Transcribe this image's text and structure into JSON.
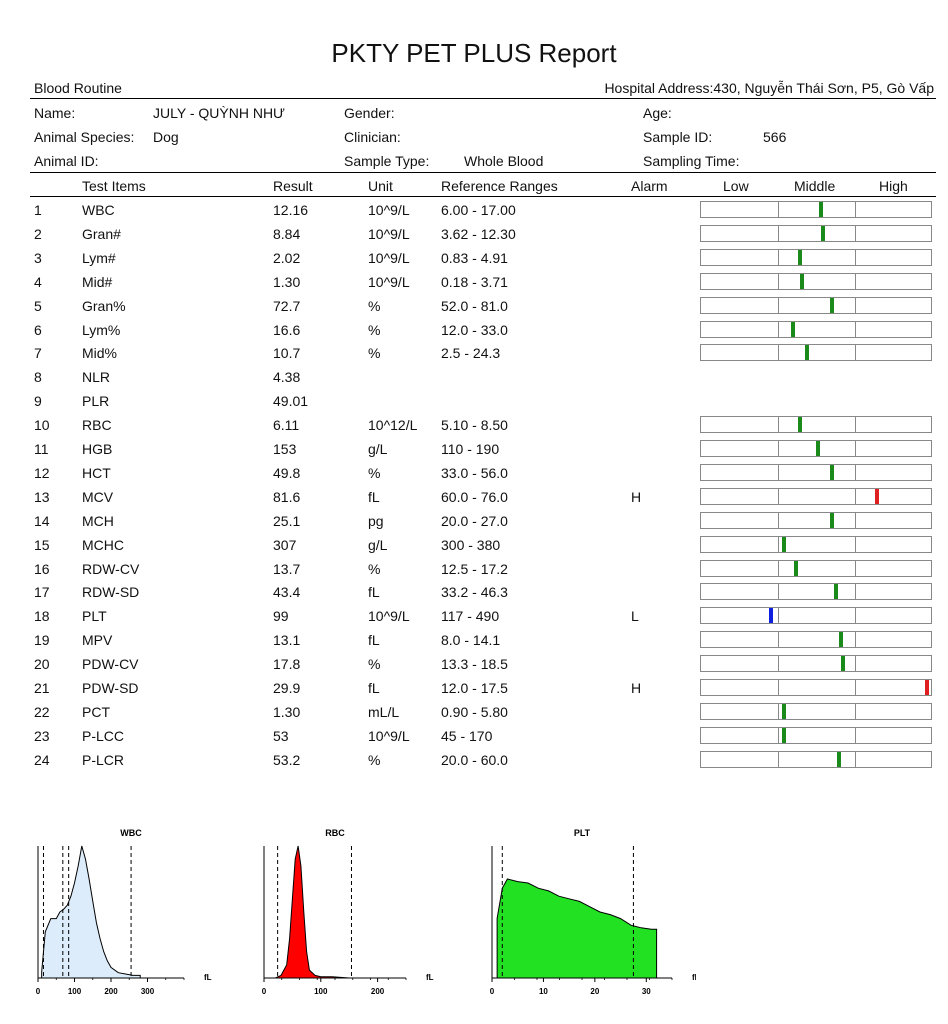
{
  "report": {
    "title": "PKTY PET PLUS Report",
    "section": "Blood Routine",
    "hospital_address": "Hospital Address:430, Nguyễn Thái Sơn, P5, Gò Vấp"
  },
  "patient": {
    "name_label": "Name:",
    "name_value": "JULY - QUỲNH NHƯ",
    "gender_label": "Gender:",
    "age_label": "Age:",
    "species_label": "Animal Species:",
    "species_value": "Dog",
    "clinician_label": "Clinician:",
    "sample_id_label": "Sample ID:",
    "sample_id_value": "566",
    "animal_id_label": "Animal ID:",
    "sample_type_label": "Sample Type:",
    "sample_type_value": "Whole Blood",
    "sampling_time_label": "Sampling Time:"
  },
  "table": {
    "headers": {
      "test_items": "Test Items",
      "result": "Result",
      "unit": "Unit",
      "reference": "Reference Ranges",
      "alarm": "Alarm",
      "low": "Low",
      "middle": "Middle",
      "high": "High"
    },
    "rows": [
      {
        "no": "1",
        "name": "WBC",
        "result": "12.16",
        "unit": "10^9/L",
        "ref": "6.00 - 17.00",
        "alarm": "",
        "level": 0.52,
        "flag": "normal"
      },
      {
        "no": "2",
        "name": "Gran#",
        "result": "8.84",
        "unit": "10^9/L",
        "ref": "3.62 - 12.30",
        "alarm": "",
        "level": 0.53,
        "flag": "normal"
      },
      {
        "no": "3",
        "name": "Lym#",
        "result": "2.02",
        "unit": "10^9/L",
        "ref": "0.83 - 4.91",
        "alarm": "",
        "level": 0.43,
        "flag": "normal"
      },
      {
        "no": "4",
        "name": "Mid#",
        "result": "1.30",
        "unit": "10^9/L",
        "ref": "0.18 - 3.71",
        "alarm": "",
        "level": 0.44,
        "flag": "normal"
      },
      {
        "no": "5",
        "name": "Gran%",
        "result": "72.7",
        "unit": "%",
        "ref": "52.0 - 81.0",
        "alarm": "",
        "level": 0.57,
        "flag": "normal"
      },
      {
        "no": "6",
        "name": "Lym%",
        "result": "16.6",
        "unit": "%",
        "ref": "12.0 - 33.0",
        "alarm": "",
        "level": 0.4,
        "flag": "normal"
      },
      {
        "no": "7",
        "name": "Mid%",
        "result": "10.7",
        "unit": "%",
        "ref": "2.5 - 24.3",
        "alarm": "",
        "level": 0.46,
        "flag": "normal"
      },
      {
        "no": "8",
        "name": "NLR",
        "result": "4.38",
        "unit": "",
        "ref": "",
        "alarm": "",
        "level": null,
        "flag": "none"
      },
      {
        "no": "9",
        "name": "PLR",
        "result": "49.01",
        "unit": "",
        "ref": "",
        "alarm": "",
        "level": null,
        "flag": "none"
      },
      {
        "no": "10",
        "name": "RBC",
        "result": "6.11",
        "unit": "10^12/L",
        "ref": "5.10 - 8.50",
        "alarm": "",
        "level": 0.43,
        "flag": "normal"
      },
      {
        "no": "11",
        "name": "HGB",
        "result": "153",
        "unit": "g/L",
        "ref": "110 - 190",
        "alarm": "",
        "level": 0.51,
        "flag": "normal"
      },
      {
        "no": "12",
        "name": "HCT",
        "result": "49.8",
        "unit": "%",
        "ref": "33.0 - 56.0",
        "alarm": "",
        "level": 0.57,
        "flag": "normal"
      },
      {
        "no": "13",
        "name": "MCV",
        "result": "81.6",
        "unit": "fL",
        "ref": "60.0 - 76.0",
        "alarm": "H",
        "level": 0.77,
        "flag": "high"
      },
      {
        "no": "14",
        "name": "MCH",
        "result": "25.1",
        "unit": "pg",
        "ref": "20.0 - 27.0",
        "alarm": "",
        "level": 0.57,
        "flag": "normal"
      },
      {
        "no": "15",
        "name": "MCHC",
        "result": "307",
        "unit": "g/L",
        "ref": "300 - 380",
        "alarm": "",
        "level": 0.36,
        "flag": "normal"
      },
      {
        "no": "16",
        "name": "RDW-CV",
        "result": "13.7",
        "unit": "%",
        "ref": "12.5 - 17.2",
        "alarm": "",
        "level": 0.41,
        "flag": "normal"
      },
      {
        "no": "17",
        "name": "RDW-SD",
        "result": "43.4",
        "unit": "fL",
        "ref": "33.2 - 46.3",
        "alarm": "",
        "level": 0.59,
        "flag": "normal"
      },
      {
        "no": "18",
        "name": "PLT",
        "result": "99",
        "unit": "10^9/L",
        "ref": "117 - 490",
        "alarm": "L",
        "level": 0.3,
        "flag": "low"
      },
      {
        "no": "19",
        "name": "MPV",
        "result": "13.1",
        "unit": "fL",
        "ref": "8.0 - 14.1",
        "alarm": "",
        "level": 0.61,
        "flag": "normal"
      },
      {
        "no": "20",
        "name": "PDW-CV",
        "result": "17.8",
        "unit": "%",
        "ref": "13.3 - 18.5",
        "alarm": "",
        "level": 0.62,
        "flag": "normal"
      },
      {
        "no": "21",
        "name": "PDW-SD",
        "result": "29.9",
        "unit": "fL",
        "ref": "12.0 - 17.5",
        "alarm": "H",
        "level": 0.99,
        "flag": "high"
      },
      {
        "no": "22",
        "name": "PCT",
        "result": "1.30",
        "unit": "mL/L",
        "ref": "0.90 - 5.80",
        "alarm": "",
        "level": 0.36,
        "flag": "normal"
      },
      {
        "no": "23",
        "name": "P-LCC",
        "result": "53",
        "unit": "10^9/L",
        "ref": "45 - 170",
        "alarm": "",
        "level": 0.36,
        "flag": "normal"
      },
      {
        "no": "24",
        "name": "P-LCR",
        "result": "53.2",
        "unit": "%",
        "ref": "20.0 - 60.0",
        "alarm": "",
        "level": 0.6,
        "flag": "normal"
      }
    ]
  },
  "colors": {
    "normal": "#1a8a1a",
    "high": "#e02020",
    "low": "#1020e0",
    "wbc_fill": "#dcecfa",
    "rbc_fill": "#ff0000",
    "plt_fill": "#22e022"
  },
  "chart_data": [
    {
      "type": "area",
      "title": "WBC",
      "xlabel": "fL",
      "xlim": [
        0,
        400
      ],
      "xticks": [
        "0",
        "100",
        "200",
        "300"
      ],
      "x": [
        10,
        20,
        35,
        50,
        60,
        70,
        80,
        90,
        100,
        110,
        120,
        130,
        140,
        150,
        160,
        170,
        180,
        190,
        200,
        220,
        240,
        260,
        280
      ],
      "y": [
        0.05,
        0.35,
        0.45,
        0.45,
        0.5,
        0.52,
        0.55,
        0.62,
        0.72,
        0.85,
        1.0,
        0.9,
        0.75,
        0.58,
        0.42,
        0.3,
        0.2,
        0.13,
        0.08,
        0.04,
        0.03,
        0.02,
        0.02
      ],
      "markers": [
        15,
        68,
        84,
        255
      ]
    },
    {
      "type": "area",
      "title": "RBC",
      "xlabel": "fL",
      "xlim": [
        0,
        250
      ],
      "xticks": [
        "0",
        "100",
        "200"
      ],
      "x": [
        20,
        30,
        40,
        45,
        50,
        55,
        60,
        65,
        70,
        75,
        80,
        90,
        100,
        120,
        150
      ],
      "y": [
        0.0,
        0.02,
        0.1,
        0.3,
        0.6,
        0.9,
        1.0,
        0.85,
        0.5,
        0.2,
        0.06,
        0.02,
        0.01,
        0.01,
        0.0
      ],
      "markers": [
        24,
        154
      ]
    },
    {
      "type": "area",
      "title": "PLT",
      "xlabel": "fL",
      "xlim": [
        0,
        35
      ],
      "xticks": [
        "0",
        "10",
        "20",
        "30"
      ],
      "x": [
        1,
        2,
        3,
        5,
        7,
        9,
        11,
        13,
        15,
        17,
        19,
        21,
        23,
        25,
        27,
        29,
        31,
        32
      ],
      "y": [
        0.45,
        0.68,
        0.75,
        0.73,
        0.72,
        0.68,
        0.66,
        0.62,
        0.6,
        0.58,
        0.54,
        0.5,
        0.48,
        0.45,
        0.4,
        0.38,
        0.37,
        0.37
      ],
      "markers": [
        2,
        27.5
      ]
    }
  ]
}
